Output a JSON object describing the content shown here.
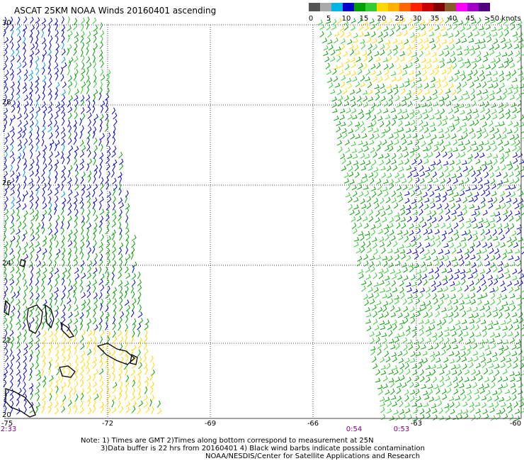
{
  "title": "ASCAT 25KM NOAA Winds 20160401 ascending",
  "legend": {
    "colors": [
      "#555555",
      "#aaaaaa",
      "#00b4e6",
      "#0000cc",
      "#00a000",
      "#33cc33",
      "#ffd700",
      "#ffb000",
      "#ff6600",
      "#ff2200",
      "#c80000",
      "#800000",
      "#8b5a2b",
      "#ff00ff",
      "#a000c8",
      "#500080"
    ],
    "ticks": [
      "0",
      "5",
      "10",
      "15",
      "20",
      "25",
      "30",
      "35",
      "40",
      "45",
      ">50 knots"
    ]
  },
  "axes": {
    "lat_labels": [
      "30",
      "28",
      "26",
      "24",
      "22",
      "20"
    ],
    "lon_labels": [
      "-75",
      "-72",
      "-69",
      "-66",
      "-63",
      "-60"
    ]
  },
  "time_labels": [
    "2:33",
    "0:54",
    "0:53"
  ],
  "notes": {
    "line1": "Note: 1) Times are GMT 2)Times along bottom correspond to measurement at 25N",
    "line2": "3)Data buffer is 22 hrs from 20160401 4) Black wind barbs indicate possible contamination",
    "credit": "NOAA/NESDIS/Center for Satellite Applications and Research"
  },
  "colors": {
    "blue_barbs": "#0000cc",
    "cyan_barbs": "#00a0e0",
    "green_barbs": "#00a000",
    "lightgreen_barbs": "#33cc33",
    "yellow_barbs": "#ffd700",
    "land": "#000000",
    "grid": "#444444"
  }
}
